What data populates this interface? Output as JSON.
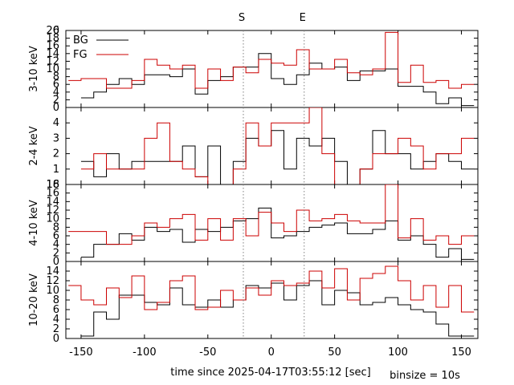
{
  "figure": {
    "xlabel": "time since 2025-04-17T03:55:12 [sec]",
    "binsize_label": "binsize = 10s",
    "markers": [
      {
        "label": "S",
        "x": -22
      },
      {
        "label": "E",
        "x": 26
      }
    ],
    "colors": {
      "bg": "#000000",
      "fg": "#cc0000",
      "marker": "#808080",
      "axis": "#000000"
    }
  },
  "chart_data": {
    "type": "line",
    "step": true,
    "xlim": [
      -162,
      163
    ],
    "xticks": [
      -150,
      -100,
      -50,
      0,
      50,
      100,
      150
    ],
    "bin_start": -160,
    "bin_width": 10,
    "legend": {
      "placement": "top-left",
      "entries": [
        "BG",
        "FG"
      ]
    },
    "panels": [
      {
        "ylabel": "3-10 keV",
        "ylim": [
          0,
          20
        ],
        "yticks": [
          0,
          2,
          4,
          6,
          8,
          10,
          12,
          14,
          16,
          18,
          20
        ],
        "extra_tick": "6",
        "legend": true,
        "series": [
          {
            "name": "BG",
            "color": "bg",
            "values": [
              null,
              2.5,
              4,
              6,
              7.5,
              6,
              8.5,
              8.5,
              8,
              10,
              3.5,
              7,
              8,
              10.5,
              10.5,
              14,
              7.5,
              6,
              8.5,
              11.5,
              10,
              10.5,
              7,
              9.5,
              9.5,
              10,
              5.5,
              5.5,
              4,
              1,
              2.5,
              0.5
            ]
          },
          {
            "name": "FG",
            "color": "fg",
            "values": [
              7,
              7.5,
              7.5,
              5,
              5,
              7,
              12.5,
              11,
              10,
              11,
              5,
              10,
              7,
              10.5,
              9,
              12.5,
              11.5,
              11,
              15,
              10,
              10,
              12.5,
              9,
              8.5,
              10,
              19.5,
              6.5,
              11,
              6.5,
              7,
              5,
              6
            ]
          }
        ]
      },
      {
        "ylabel": "2-4 keV",
        "ylim": [
          0,
          5
        ],
        "yticks": [
          1,
          2,
          3,
          4
        ],
        "legend": false,
        "series": [
          {
            "name": "BG",
            "color": "bg",
            "values": [
              null,
              1.5,
              0.5,
              2,
              1,
              1.5,
              1.5,
              1.5,
              1.5,
              2.5,
              0.5,
              2.5,
              0,
              1.5,
              3,
              2.5,
              3.5,
              1,
              3,
              2.5,
              3,
              1.5,
              0,
              1,
              3.5,
              2,
              2,
              1,
              1.5,
              2,
              1.5,
              1
            ]
          },
          {
            "name": "FG",
            "color": "fg",
            "values": [
              null,
              1,
              2,
              1,
              1,
              1,
              3,
              4,
              1.5,
              1,
              0.5,
              0,
              0,
              1,
              4,
              2.5,
              4,
              4,
              4,
              5,
              2,
              0,
              0,
              1,
              2,
              2,
              3,
              2.5,
              1,
              2,
              2,
              3
            ]
          }
        ]
      },
      {
        "ylabel": "4-10 keV",
        "ylim": [
          0,
          18
        ],
        "yticks": [
          0,
          2,
          4,
          6,
          8,
          10,
          12,
          14,
          16,
          18
        ],
        "extra_tick": "16",
        "legend": false,
        "series": [
          {
            "name": "BG",
            "color": "bg",
            "values": [
              null,
              1,
              4,
              4,
              6.5,
              5,
              8,
              7,
              7.5,
              4.5,
              7.5,
              7,
              8,
              9.5,
              10,
              12.5,
              5.5,
              6,
              7,
              8,
              8.5,
              9,
              6.5,
              6.5,
              7.5,
              9.5,
              5,
              6,
              4,
              1,
              3,
              0.5
            ]
          },
          {
            "name": "FG",
            "color": "fg",
            "values": [
              7,
              7,
              7,
              4,
              4,
              6,
              9,
              8,
              10,
              11,
              5,
              10,
              5,
              10,
              6,
              11.5,
              9,
              7,
              12,
              9.5,
              10,
              11,
              9.5,
              9,
              9,
              18,
              5.5,
              10,
              5,
              6,
              4,
              6
            ]
          }
        ]
      },
      {
        "ylabel": "10-20 keV",
        "ylim": [
          0,
          16
        ],
        "yticks": [
          0,
          2,
          4,
          6,
          8,
          10,
          12,
          14
        ],
        "legend": false,
        "series": [
          {
            "name": "BG",
            "color": "bg",
            "values": [
              null,
              0.5,
              5.5,
              4,
              9,
              9,
              7.5,
              7,
              10.5,
              7,
              6.5,
              8,
              6.5,
              8,
              11,
              10.5,
              11.5,
              8,
              11,
              12,
              7,
              10,
              9.5,
              7,
              7.5,
              8.5,
              7,
              6,
              5.5,
              3,
              0.5,
              0.5
            ]
          },
          {
            "name": "FG",
            "color": "fg",
            "values": [
              11,
              8,
              7,
              10.5,
              8.5,
              13,
              6,
              7.5,
              12,
              13,
              6,
              6.5,
              10,
              8,
              10.5,
              9,
              12,
              11,
              11.5,
              14,
              10.5,
              14.5,
              8,
              12.5,
              13.5,
              15,
              12,
              8,
              11,
              6.5,
              11,
              5.5
            ]
          }
        ]
      }
    ]
  }
}
